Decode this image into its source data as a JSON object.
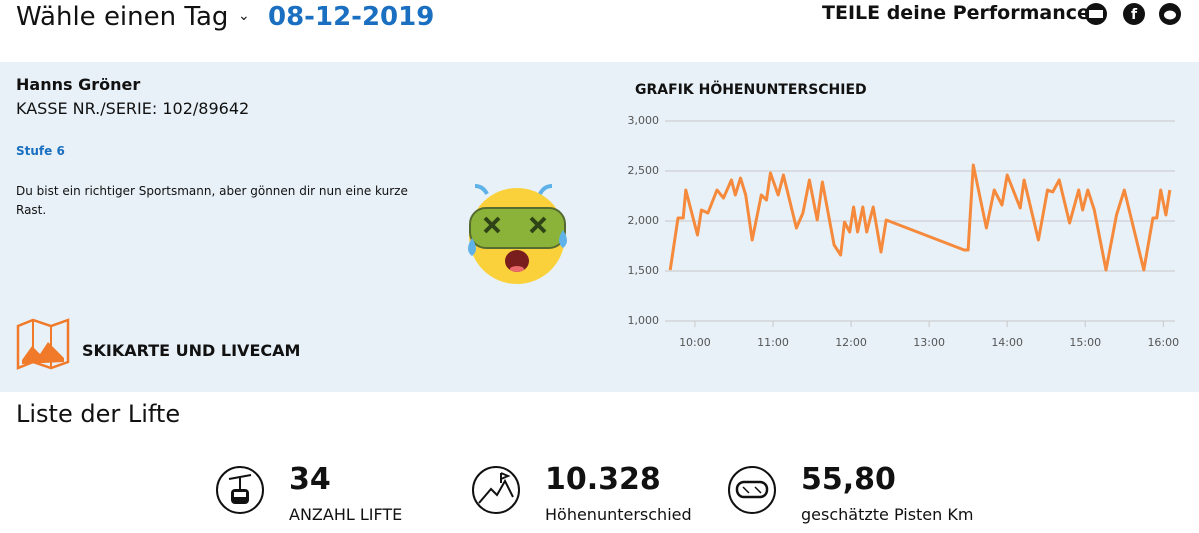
{
  "header": {
    "day_label": "Wähle einen Tag",
    "date": "08-12-2019",
    "share_label": "TEILE deine Performance"
  },
  "profile": {
    "name": "Hanns Gröner",
    "ticket": "KASSE NR./SERIE: 102/89642",
    "level": "Stufe 6",
    "message": "Du bist ein richtiger Sportsmann, aber gönnen dir nun eine kurze Rast.",
    "map_link": "SKIKARTE UND LIVECAM"
  },
  "chart_data": {
    "type": "line",
    "title": "GRAFIK HÖHENUNTERSCHIED",
    "color": "#f58a3c",
    "grid": true,
    "x": [
      "09:41",
      "09:47",
      "09:51",
      "09:53",
      "10:02",
      "10:05",
      "10:10",
      "10:17",
      "10:22",
      "10:28",
      "10:31",
      "10:35",
      "10:39",
      "10:44",
      "10:51",
      "10:55",
      "10:58",
      "11:04",
      "11:08",
      "11:18",
      "11:23",
      "11:28",
      "11:34",
      "11:38",
      "11:47",
      "11:52",
      "11:55",
      "11:59",
      "12:02",
      "12:05",
      "12:09",
      "12:12",
      "12:17",
      "12:23",
      "12:27",
      "13:27",
      "13:30",
      "13:34",
      "13:44",
      "13:50",
      "13:56",
      "14:00",
      "14:10",
      "14:13",
      "14:24",
      "14:31",
      "14:35",
      "14:40",
      "14:48",
      "14:55",
      "14:58",
      "15:02",
      "15:07",
      "15:16",
      "15:24",
      "15:30",
      "15:45",
      "15:52",
      "15:55",
      "15:58",
      "16:02",
      "16:05"
    ],
    "values": [
      1510,
      2030,
      2030,
      2310,
      1860,
      2110,
      2080,
      2310,
      2230,
      2410,
      2260,
      2430,
      2260,
      1810,
      2260,
      2210,
      2480,
      2260,
      2460,
      1930,
      2080,
      2410,
      2010,
      2390,
      1760,
      1660,
      1990,
      1890,
      2140,
      1890,
      2140,
      1890,
      2140,
      1690,
      2010,
      1710,
      1710,
      2560,
      1930,
      2310,
      2160,
      2460,
      2130,
      2410,
      1810,
      2310,
      2290,
      2410,
      1980,
      2310,
      2110,
      2310,
      2110,
      1510,
      2060,
      2310,
      1510,
      2030,
      2030,
      2310,
      2060,
      2310
    ],
    "xlim": [
      "09:37",
      "16:09"
    ],
    "xticks": [
      "10:00",
      "11:00",
      "12:00",
      "13:00",
      "14:00",
      "15:00",
      "16:00"
    ],
    "ylim": [
      1000,
      3000
    ],
    "yticks": [
      {
        "value": 1000,
        "label": "1,000"
      },
      {
        "value": 1500,
        "label": "1,500"
      },
      {
        "value": 2000,
        "label": "2,000"
      },
      {
        "value": 2500,
        "label": "2,500"
      },
      {
        "value": 3000,
        "label": "3,000"
      }
    ]
  },
  "lifts": {
    "title": "Liste der Lifte",
    "stats": [
      {
        "value": "34",
        "label": "ANZAHL LIFTE"
      },
      {
        "value": "10.328",
        "label": "Höhenunterschied"
      },
      {
        "value": "55,80",
        "label": "geschätzte Pisten Km"
      }
    ]
  }
}
